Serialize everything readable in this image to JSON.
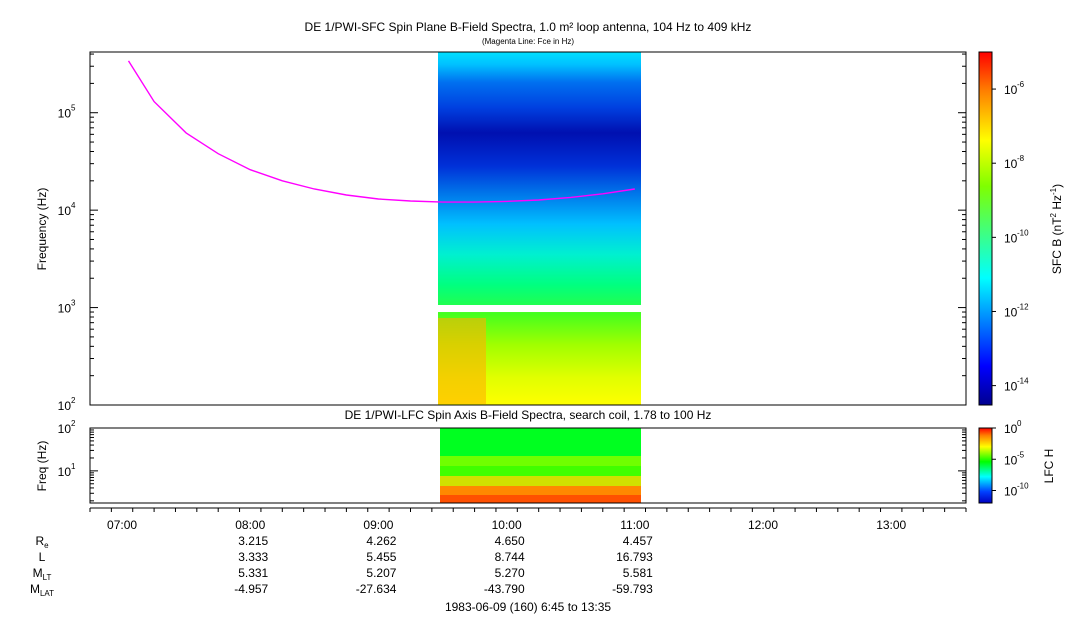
{
  "chart_data": [
    {
      "type": "heatmap",
      "title": "DE 1/PWI-SFC  Spin Plane B-Field Spectra, 1.0 m² loop antenna, 104 Hz to 409 kHz",
      "subtitle": "(Magenta Line: Fce in Hz)",
      "ylabel": "Frequency (Hz)",
      "yscale": "log",
      "ylim": [
        100,
        420000
      ],
      "y_ticks": [
        "10",
        "10",
        "10",
        "10"
      ],
      "y_tick_exps": [
        "2",
        "3",
        "4",
        "5"
      ],
      "xlim": [
        "06:45",
        "13:35"
      ],
      "data_coverage": {
        "start": "09:27",
        "end": "11:03",
        "gap_hz": [
          900,
          1050
        ]
      },
      "colorbar": {
        "label": "SFC B (nT",
        "label_sup": "2",
        "label_mid": " Hz",
        "label_sup2": "-1",
        "label_end": ")",
        "scale": "log",
        "range": [
          3e-15,
          1e-05
        ],
        "tick_base": "10",
        "tick_exps": [
          "-6",
          "-8",
          "-10",
          "-12",
          "-14"
        ],
        "tick_values": [
          1e-06,
          1e-08,
          1e-10,
          1e-12,
          1e-14
        ]
      },
      "series": [
        {
          "name": "Fce",
          "color": "#ff00ff",
          "x": [
            "07:03",
            "07:15",
            "07:30",
            "07:45",
            "08:00",
            "08:15",
            "08:30",
            "08:45",
            "09:00",
            "09:15",
            "09:30",
            "09:45",
            "10:00",
            "10:15",
            "10:30",
            "10:45",
            "11:00"
          ],
          "y": [
            340000,
            130000,
            62000,
            38000,
            26000,
            20000,
            16500,
            14300,
            13000,
            12400,
            12100,
            12100,
            12300,
            12700,
            13500,
            14700,
            16500
          ]
        }
      ]
    },
    {
      "type": "heatmap",
      "title": "DE 1/PWI-LFC  Spin Axis B-Field Spectra, search coil, 1.78 to 100 Hz",
      "ylabel": "Freq (Hz)",
      "yscale": "log",
      "ylim": [
        1.78,
        100
      ],
      "y_ticks": [
        "10",
        "10"
      ],
      "y_tick_exps": [
        "1",
        "2"
      ],
      "xlim": [
        "06:45",
        "13:35"
      ],
      "data_coverage": {
        "start": "09:27",
        "end": "11:03"
      },
      "colorbar": {
        "label": "LFC H",
        "scale": "log",
        "range": [
          1e-12,
          1
        ],
        "tick_base": "10",
        "tick_exps": [
          "0",
          "-5",
          "-10"
        ],
        "tick_values": [
          1,
          1e-05,
          1e-10
        ]
      }
    }
  ],
  "time_axis": {
    "ticks": [
      "07:00",
      "08:00",
      "09:00",
      "10:00",
      "11:00",
      "12:00",
      "13:00"
    ]
  },
  "ephemeris": {
    "rows": [
      {
        "label": "R",
        "sub": "e",
        "values": [
          "3.215",
          "4.262",
          "4.650",
          "4.457"
        ]
      },
      {
        "label": "L",
        "sub": "",
        "values": [
          "3.333",
          "5.455",
          "8.744",
          "16.793"
        ]
      },
      {
        "label": "M",
        "sub": "LT",
        "values": [
          "5.331",
          "5.207",
          "5.270",
          "5.581"
        ]
      },
      {
        "label": "M",
        "sub": "LAT",
        "values": [
          "-4.957",
          "-27.634",
          "-43.790",
          "-59.793"
        ]
      }
    ],
    "columns": [
      "08:00",
      "09:00",
      "10:00",
      "11:00"
    ]
  },
  "footer": "1983-06-09 (160) 6:45 to 13:35"
}
